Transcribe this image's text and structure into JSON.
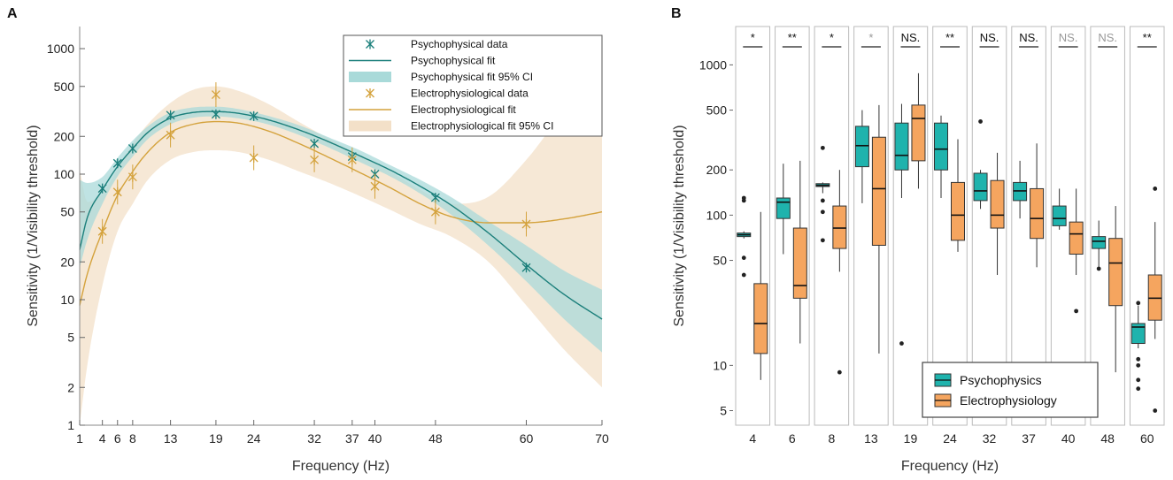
{
  "colors": {
    "psy": "#1a9e9a",
    "psy_line": "#1b7f7b",
    "psy_ci": "#a9dad9",
    "ephys": "#d4a23c",
    "ephys_ci": "#f3e0c8",
    "box_psy": "#1fb3ad",
    "box_ephys": "#f5a55f",
    "ns_gray": "#999999"
  },
  "chart_data": [
    {
      "panel": "A",
      "type": "line",
      "xlabel": "Frequency (Hz)",
      "ylabel": "Sensitivity (1/Visibility threshold)",
      "yscale": "log",
      "xlim": [
        1,
        70
      ],
      "ylim": [
        1,
        1500
      ],
      "xticks": [
        1,
        4,
        6,
        8,
        13,
        19,
        24,
        32,
        37,
        40,
        48,
        60,
        70
      ],
      "yticks": [
        1,
        2,
        5,
        10,
        20,
        50,
        100,
        200,
        500,
        1000
      ],
      "legend": [
        "Psychophysical data",
        "Psychophysical fit",
        "Psychophysical fit 95% CI",
        "Electrophysiological data",
        "Electrophysiological fit",
        "Electrophysiological fit 95% CI"
      ],
      "series": [
        {
          "name": "Psychophysical data",
          "x": [
            4,
            6,
            8,
            13,
            19,
            24,
            32,
            37,
            40,
            48,
            60
          ],
          "y": [
            77,
            122,
            160,
            295,
            300,
            290,
            175,
            138,
            100,
            65,
            18
          ]
        },
        {
          "name": "Electrophysiological data",
          "x": [
            4,
            6,
            8,
            13,
            19,
            24,
            32,
            37,
            40,
            48,
            60
          ],
          "y": [
            35,
            72,
            95,
            205,
            430,
            135,
            130,
            130,
            80,
            50,
            40
          ]
        },
        {
          "name": "Psychophysical fit",
          "x": [
            1,
            2,
            4,
            6,
            8,
            10,
            13,
            16,
            19,
            22,
            26,
            30,
            34,
            38,
            42,
            46,
            50,
            55,
            60,
            65,
            70
          ],
          "y": [
            25,
            45,
            75,
            115,
            160,
            215,
            280,
            310,
            315,
            305,
            270,
            225,
            180,
            140,
            108,
            80,
            57,
            34,
            19,
            11,
            7
          ]
        },
        {
          "name": "Psychophysical fit 95% CI",
          "x": [
            1,
            2,
            4,
            6,
            8,
            10,
            13,
            16,
            19,
            22,
            26,
            30,
            34,
            38,
            42,
            46,
            50,
            55,
            60,
            65,
            70
          ],
          "upper": [
            90,
            85,
            95,
            135,
            185,
            240,
            310,
            340,
            345,
            330,
            290,
            245,
            195,
            155,
            118,
            90,
            66,
            42,
            27,
            17,
            12
          ],
          "lower": [
            18,
            30,
            58,
            96,
            138,
            190,
            250,
            282,
            288,
            278,
            248,
            205,
            162,
            125,
            96,
            70,
            48,
            27,
            14,
            7,
            3.8
          ]
        },
        {
          "name": "Electrophysiological fit",
          "x": [
            1,
            2,
            4,
            6,
            8,
            10,
            13,
            16,
            19,
            22,
            26,
            30,
            34,
            38,
            42,
            46,
            50,
            55,
            60,
            65,
            70
          ],
          "y": [
            9,
            16,
            35,
            68,
            105,
            150,
            215,
            250,
            262,
            255,
            220,
            175,
            135,
            103,
            78,
            58,
            46,
            41,
            41,
            44,
            50
          ]
        },
        {
          "name": "Electrophysiological fit 95% CI",
          "x": [
            1,
            2,
            4,
            6,
            8,
            10,
            13,
            16,
            19,
            22,
            26,
            30,
            34,
            38,
            42,
            46,
            50,
            55,
            60,
            65,
            70
          ],
          "upper": [
            110,
            60,
            70,
            110,
            175,
            250,
            370,
            470,
            500,
            460,
            360,
            260,
            190,
            140,
            105,
            75,
            58,
            66,
            130,
            320,
            700
          ],
          "lower": [
            1,
            3,
            13,
            35,
            58,
            90,
            130,
            150,
            155,
            150,
            130,
            105,
            85,
            67,
            52,
            40,
            32,
            20,
            9,
            4,
            2
          ]
        }
      ],
      "panel_label": "A"
    },
    {
      "panel": "B",
      "type": "box",
      "xlabel": "Frequency (Hz)",
      "ylabel": "Sensitivity (1/Visibility threshold)",
      "yscale": "log",
      "ylim": [
        4,
        1800
      ],
      "yticks": [
        5,
        10,
        50,
        100,
        200,
        500,
        1000
      ],
      "categories": [
        "4",
        "6",
        "8",
        "13",
        "19",
        "24",
        "32",
        "37",
        "40",
        "48",
        "60"
      ],
      "significance": [
        "*",
        "**",
        "*",
        "*",
        "NS.",
        "**",
        "NS.",
        "NS.",
        "NS.",
        "NS.",
        "**"
      ],
      "significance_gray": [
        false,
        false,
        false,
        true,
        false,
        false,
        false,
        false,
        true,
        true,
        false
      ],
      "legend": [
        "Psychophysics",
        "Electrophysiology"
      ],
      "series": [
        {
          "name": "Psychophysics",
          "boxes": [
            {
              "min": 70,
              "q1": 72,
              "median": 74,
              "q3": 76,
              "max": 78,
              "outliers": [
                125,
                130,
                52,
                40
              ]
            },
            {
              "min": 55,
              "q1": 95,
              "median": 122,
              "q3": 130,
              "max": 220,
              "outliers": []
            },
            {
              "min": 140,
              "q1": 155,
              "median": 158,
              "q3": 162,
              "max": 165,
              "outliers": [
                280,
                125,
                105,
                68
              ]
            },
            {
              "min": 120,
              "q1": 210,
              "median": 290,
              "q3": 390,
              "max": 500,
              "outliers": []
            },
            {
              "min": 130,
              "q1": 200,
              "median": 250,
              "q3": 410,
              "max": 550,
              "outliers": [
                14
              ]
            },
            {
              "min": 130,
              "q1": 200,
              "median": 275,
              "q3": 410,
              "max": 460,
              "outliers": []
            },
            {
              "min": 110,
              "q1": 125,
              "median": 145,
              "q3": 190,
              "max": 200,
              "outliers": [
                420
              ]
            },
            {
              "min": 95,
              "q1": 125,
              "median": 145,
              "q3": 165,
              "max": 230,
              "outliers": []
            },
            {
              "min": 80,
              "q1": 85,
              "median": 95,
              "q3": 115,
              "max": 150,
              "outliers": []
            },
            {
              "min": 45,
              "q1": 60,
              "median": 67,
              "q3": 72,
              "max": 92,
              "outliers": [
                44
              ]
            },
            {
              "min": 13,
              "q1": 14,
              "median": 18,
              "q3": 19,
              "max": 25,
              "outliers": [
                26,
                11,
                10,
                8,
                7
              ]
            }
          ]
        },
        {
          "name": "Electrophysiology",
          "boxes": [
            {
              "min": 8,
              "q1": 12,
              "median": 19,
              "q3": 35,
              "max": 105,
              "outliers": []
            },
            {
              "min": 14,
              "q1": 28,
              "median": 34,
              "q3": 82,
              "max": 230,
              "outliers": []
            },
            {
              "min": 42,
              "q1": 60,
              "median": 82,
              "q3": 115,
              "max": 200,
              "outliers": [
                9
              ]
            },
            {
              "min": 12,
              "q1": 63,
              "median": 150,
              "q3": 330,
              "max": 540,
              "outliers": []
            },
            {
              "min": 150,
              "q1": 230,
              "median": 440,
              "q3": 540,
              "max": 880,
              "outliers": []
            },
            {
              "min": 57,
              "q1": 68,
              "median": 100,
              "q3": 165,
              "max": 320,
              "outliers": []
            },
            {
              "min": 40,
              "q1": 82,
              "median": 100,
              "q3": 170,
              "max": 260,
              "outliers": []
            },
            {
              "min": 45,
              "q1": 70,
              "median": 95,
              "q3": 150,
              "max": 300,
              "outliers": []
            },
            {
              "min": 40,
              "q1": 55,
              "median": 75,
              "q3": 90,
              "max": 150,
              "outliers": [
                23
              ]
            },
            {
              "min": 9,
              "q1": 25,
              "median": 48,
              "q3": 70,
              "max": 115,
              "outliers": []
            },
            {
              "min": 15,
              "q1": 20,
              "median": 28,
              "q3": 40,
              "max": 90,
              "outliers": [
                150,
                5
              ]
            }
          ]
        }
      ],
      "panel_label": "B"
    }
  ]
}
